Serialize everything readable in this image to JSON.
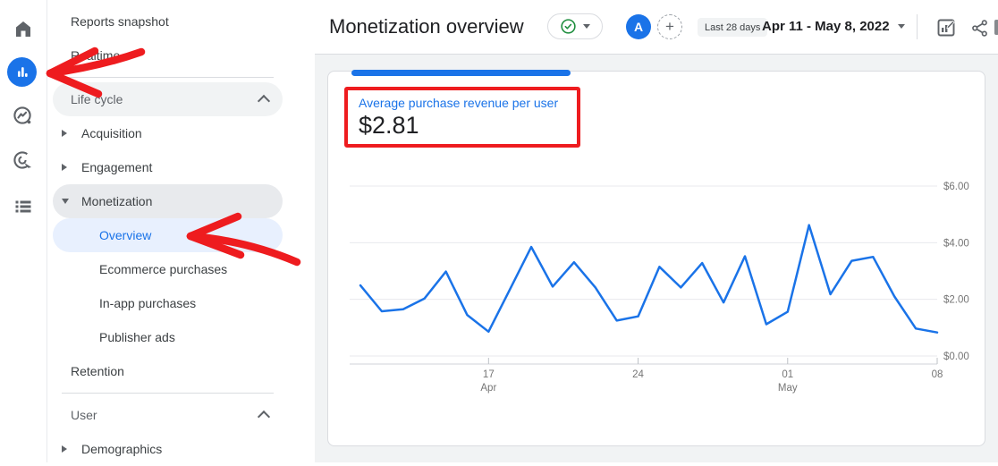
{
  "colors": {
    "accent": "#1a73e8",
    "annotation_red": "#ee1c1f",
    "check_green": "#1e8e3e",
    "selected_bg": "#e8f0fe",
    "active_bg": "#e8eaed"
  },
  "rail": {
    "icons": [
      "home-icon",
      "reports-icon",
      "explore-icon",
      "advertising-icon",
      "library-icon"
    ],
    "selected": "reports-icon"
  },
  "nav": {
    "items": [
      {
        "label": "Reports snapshot",
        "type": "link"
      },
      {
        "label": "Realtime",
        "type": "link"
      },
      {
        "type": "divider"
      },
      {
        "label": "Life cycle",
        "type": "section",
        "style": "gray"
      },
      {
        "label": "Acquisition",
        "type": "expand"
      },
      {
        "label": "Engagement",
        "type": "expand"
      },
      {
        "label": "Monetization",
        "type": "expanded",
        "style": "active"
      },
      {
        "label": "Overview",
        "type": "sub",
        "style": "selected"
      },
      {
        "label": "Ecommerce purchases",
        "type": "sub"
      },
      {
        "label": "In-app purchases",
        "type": "sub"
      },
      {
        "label": "Publisher ads",
        "type": "sub"
      },
      {
        "label": "Retention",
        "type": "link"
      },
      {
        "type": "divider"
      },
      {
        "label": "User",
        "type": "section"
      },
      {
        "label": "Demographics",
        "type": "expand"
      }
    ]
  },
  "header": {
    "title": "Monetization overview",
    "report_status_icon": "check-circle",
    "avatar_letter": "A",
    "add_comparison_label": "+",
    "date_preset": "Last 28 days",
    "date_range": "Apr 11 - May 8, 2022"
  },
  "card": {
    "metric_label": "Average purchase revenue per user",
    "metric_value": "$2.81"
  },
  "annotations": {
    "color": "#ee1c1f",
    "box_target": "metric KPI",
    "arrow_targets": [
      "reports rail icon",
      "Overview nav item"
    ]
  },
  "chart_data": {
    "type": "line",
    "title": "Average purchase revenue per user",
    "kpi": "$2.81",
    "line_color": "#1a73e8",
    "grid": "horizontal",
    "legend": "none",
    "ylim": [
      0,
      6
    ],
    "yticks": [
      {
        "value": 6,
        "label": "$6.00"
      },
      {
        "value": 4,
        "label": "$4.00"
      },
      {
        "value": 2,
        "label": "$2.00"
      },
      {
        "value": 0,
        "label": "$0.00"
      }
    ],
    "xticks": [
      {
        "index": 6,
        "label": "17",
        "sub": "Apr"
      },
      {
        "index": 13,
        "label": "24"
      },
      {
        "index": 20,
        "label": "01",
        "sub": "May"
      },
      {
        "index": 27,
        "label": "08"
      }
    ],
    "dates": [
      "Apr 11",
      "Apr 12",
      "Apr 13",
      "Apr 14",
      "Apr 15",
      "Apr 16",
      "Apr 17",
      "Apr 18",
      "Apr 19",
      "Apr 20",
      "Apr 21",
      "Apr 22",
      "Apr 23",
      "Apr 24",
      "Apr 25",
      "Apr 26",
      "Apr 27",
      "Apr 28",
      "Apr 29",
      "Apr 30",
      "May 1",
      "May 2",
      "May 3",
      "May 4",
      "May 5",
      "May 6",
      "May 7",
      "May 8"
    ],
    "values": [
      2.49,
      1.58,
      1.65,
      2.03,
      2.98,
      1.45,
      0.86,
      2.35,
      3.85,
      2.45,
      3.31,
      2.42,
      1.25,
      1.4,
      3.15,
      2.42,
      3.28,
      1.89,
      3.52,
      1.12,
      1.56,
      4.62,
      2.18,
      3.36,
      3.5,
      2.1,
      0.97,
      0.83
    ]
  }
}
